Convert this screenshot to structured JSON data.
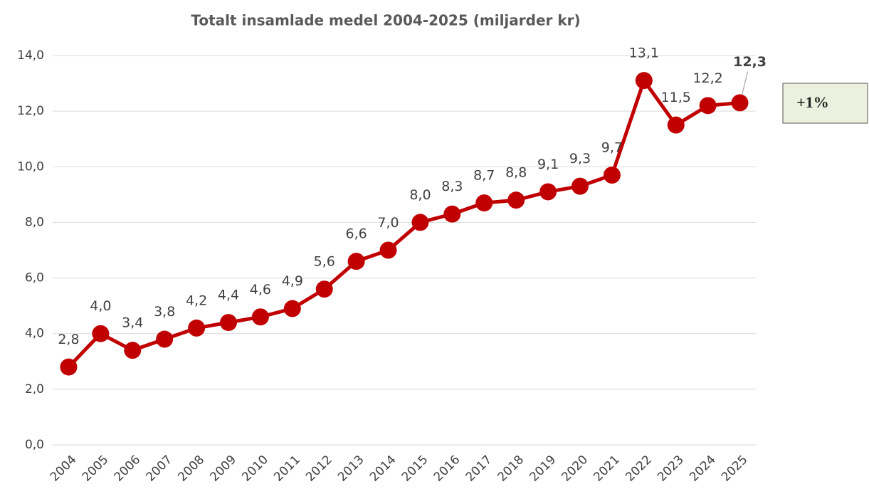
{
  "chart_data": {
    "type": "line",
    "title": "Totalt insamlade medel 2004-2025 (miljarder kr)",
    "categories": [
      "2004",
      "2005",
      "2006",
      "2007",
      "2008",
      "2009",
      "2010",
      "2011",
      "2012",
      "2013",
      "2014",
      "2015",
      "2016",
      "2017",
      "2018",
      "2019",
      "2020",
      "2021",
      "2022",
      "2023",
      "2024",
      "2025"
    ],
    "series": [
      {
        "name": "Totalt insamlade medel",
        "color": "#c00000",
        "values": [
          2.8,
          4.0,
          3.4,
          3.8,
          4.2,
          4.4,
          4.6,
          4.9,
          5.6,
          6.6,
          7.0,
          8.0,
          8.3,
          8.7,
          8.8,
          9.1,
          9.3,
          9.7,
          13.1,
          11.5,
          12.2,
          12.3
        ],
        "value_labels": [
          "2,8",
          "4,0",
          "3,4",
          "3,8",
          "4,2",
          "4,4",
          "4,6",
          "4,9",
          "5,6",
          "6,6",
          "7,0",
          "8,0",
          "8,3",
          "8,7",
          "8,8",
          "9,1",
          "9,3",
          "9,7",
          "13,1",
          "11,5",
          "12,2",
          "12,3"
        ]
      }
    ],
    "ylim": [
      0,
      14
    ],
    "yticks": [
      {
        "value": 0,
        "label": "0,0"
      },
      {
        "value": 2,
        "label": "2,0"
      },
      {
        "value": 4,
        "label": "4,0"
      },
      {
        "value": 6,
        "label": "6,0"
      },
      {
        "value": 8,
        "label": "8,0"
      },
      {
        "value": 10,
        "label": "10,0"
      },
      {
        "value": 12,
        "label": "12,0"
      },
      {
        "value": 14,
        "label": "14,0"
      }
    ],
    "grid": true,
    "annotation": "+1%"
  }
}
